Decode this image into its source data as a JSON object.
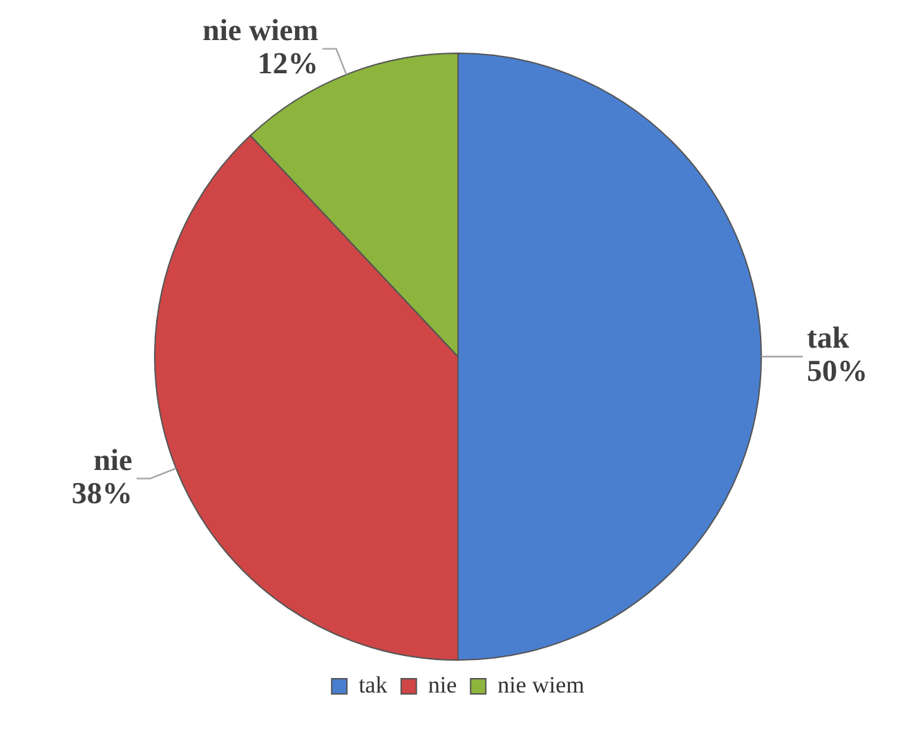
{
  "chart_data": {
    "type": "pie",
    "categories": [
      "tak",
      "nie",
      "nie wiem"
    ],
    "values": [
      50,
      38,
      12
    ],
    "colors": [
      "#4a7fd0",
      "#d04646",
      "#8db53e"
    ],
    "value_labels": [
      "50%",
      "38%",
      "12%"
    ],
    "legend": "bottom"
  }
}
